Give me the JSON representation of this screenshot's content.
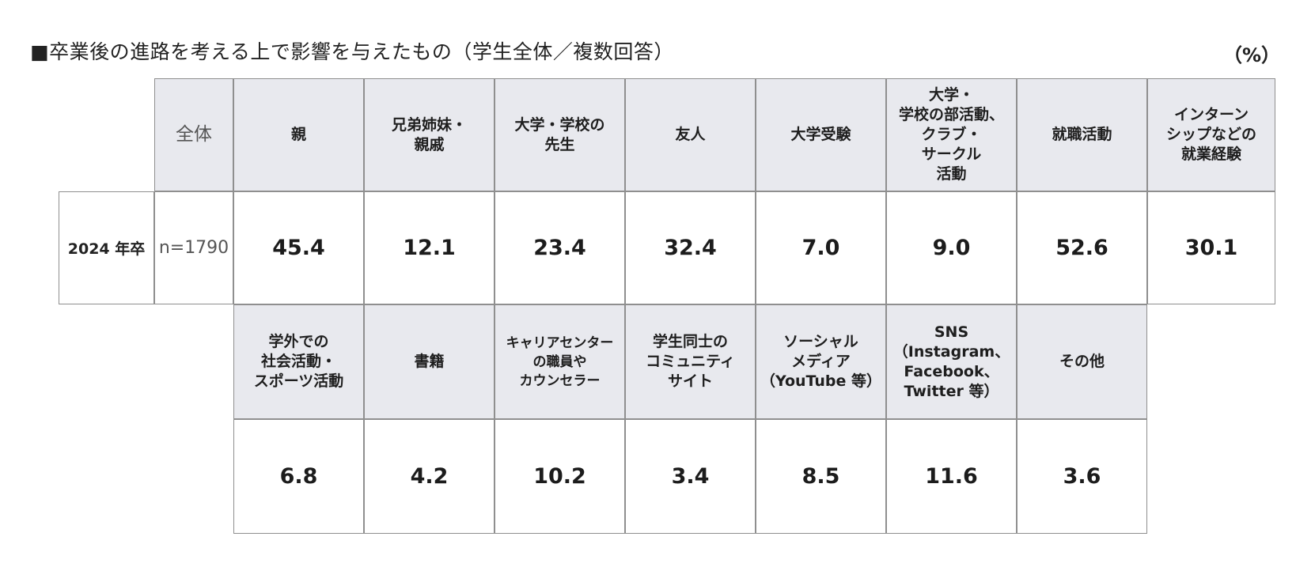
{
  "title": "■卒業後の進路を考える上で影響を与えたもの（学生全体／複数回答）",
  "unit": "（%）",
  "total_header": "全体",
  "row_label": "2024 年卒",
  "n_label": "n=1790",
  "row1": {
    "headers": [
      "親",
      "兄弟姉妹・\n親戚",
      "大学・学校の\n先生",
      "友人",
      "大学受験",
      "大学・\n学校の部活動、\nクラブ・\nサークル\n活動",
      "就職活動",
      "インターン\nシップなどの\n就業経験"
    ],
    "values": [
      "45.4",
      "12.1",
      "23.4",
      "32.4",
      "7.0",
      "9.0",
      "52.6",
      "30.1"
    ]
  },
  "row2": {
    "headers": [
      "学外での\n社会活動・\nスポーツ活動",
      "書籍",
      "キャリアセンター\nの職員や\nカウンセラー",
      "学生同士の\nコミュニティ\nサイト",
      "ソーシャル\nメディア\n（YouTube 等）",
      "SNS\n（Instagram、\nFacebook、\nTwitter 等）",
      "その他"
    ],
    "values": [
      "6.8",
      "4.2",
      "10.2",
      "3.4",
      "8.5",
      "11.6",
      "3.6"
    ]
  },
  "colors": {
    "header_bg": "#e8e9ee",
    "border": "#8f8f8f"
  }
}
